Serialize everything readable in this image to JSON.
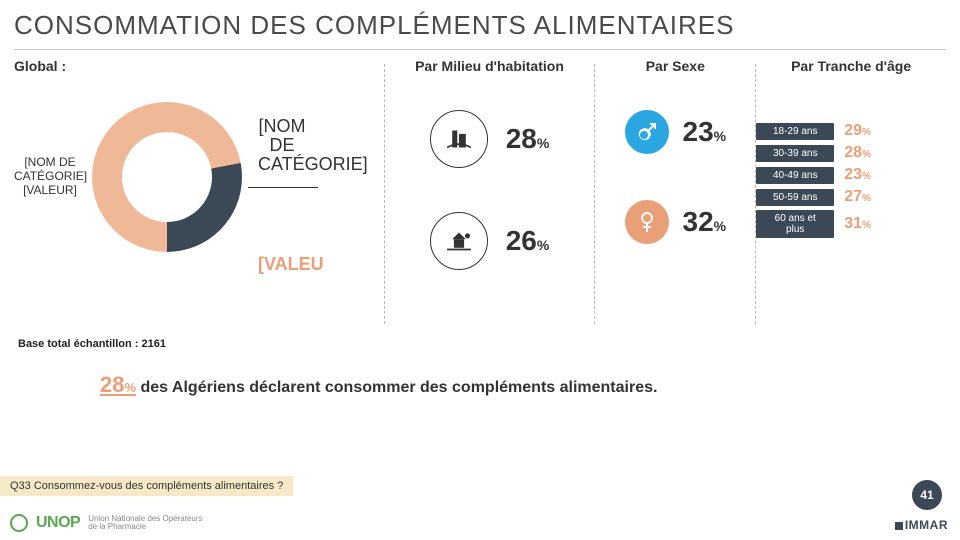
{
  "title": "CONSOMMATION DES COMPLÉMENTS ALIMENTAIRES",
  "sections": {
    "global": "Global :",
    "milieu": "Par Milieu d'habitation",
    "sexe": "Par Sexe",
    "age": "Par Tranche d'âge"
  },
  "donut": {
    "type": "donut",
    "label_side": {
      "cat": "[NOM DE CATÉGORIE]",
      "val": "[VALEUR]"
    },
    "callout": {
      "cat": "[NOM DE CATÉGORIE]",
      "val": "[VALEU"
    },
    "segments": [
      {
        "color": "#efb896",
        "pct": 72
      },
      {
        "color": "#3b4856",
        "pct": 28
      }
    ],
    "hole_color": "#ffffff",
    "background": "#ffffff",
    "outer_d": 150,
    "inner_d": 90
  },
  "milieu": {
    "urban": {
      "label": "URBAN AREA",
      "value": 28,
      "icon": "urban-area-icon"
    },
    "rural": {
      "label": "RURAL AREA",
      "value": 26,
      "icon": "rural-area-icon"
    }
  },
  "sexe": {
    "male": {
      "value": 23,
      "color": "#2aa7e0"
    },
    "female": {
      "value": 32,
      "color": "#e99f77"
    }
  },
  "age": {
    "rows": [
      {
        "label": "18-29 ans",
        "value": 29,
        "color": "#e99f77"
      },
      {
        "label": "30-39 ans",
        "value": 28,
        "color": "#e99f77"
      },
      {
        "label": "40-49 ans",
        "value": 23,
        "color": "#e99f77"
      },
      {
        "label": "50-59 ans",
        "value": 27,
        "color": "#e99f77"
      },
      {
        "label": "60 ans et plus",
        "value": 31,
        "color": "#e99f77"
      }
    ],
    "label_bg": "#3b4856",
    "label_fg": "#ffffff"
  },
  "base": "Base total échantillon : 2161",
  "headline": {
    "value": 28,
    "text": " des Algériens déclarent consommer des compléments alimentaires."
  },
  "question": "Q33 Consommez-vous des compléments alimentaires ?",
  "footer": {
    "logo": "UNOP",
    "sub": "Union Nationale des Opérateurs de la Pharmacie",
    "page": "41",
    "brand": "IMMAR"
  },
  "colors": {
    "accent": "#e99f77",
    "dark": "#3b4856",
    "male": "#2aa7e0",
    "title": "#4a4a4a"
  }
}
